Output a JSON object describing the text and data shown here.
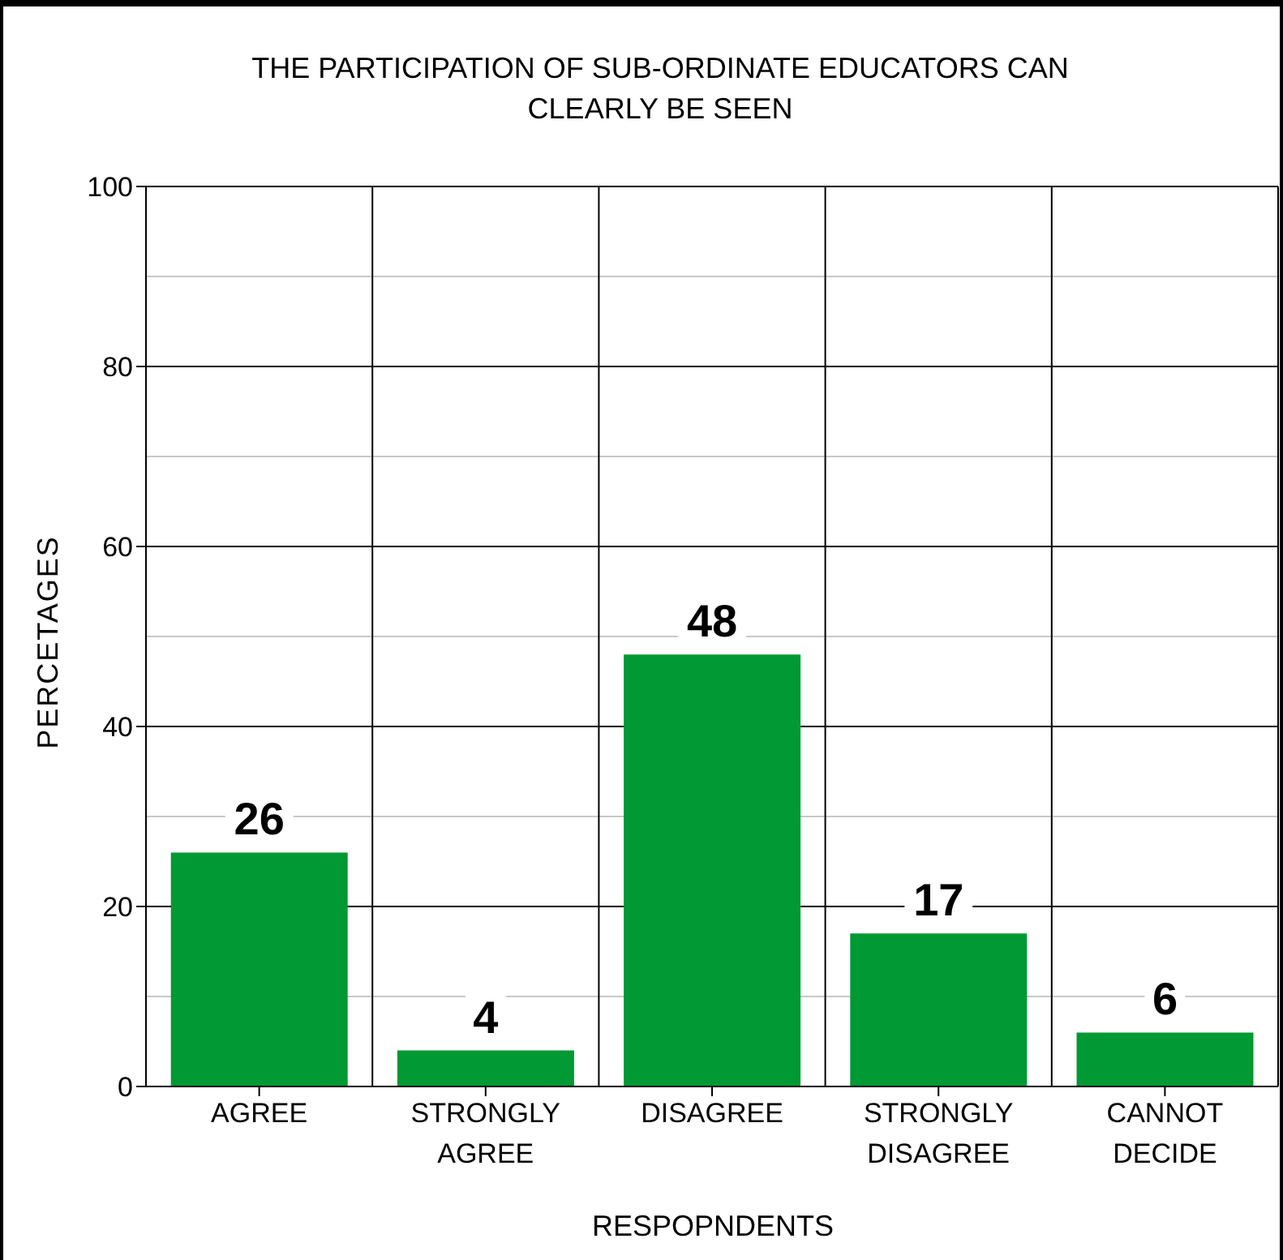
{
  "chart_data": {
    "type": "bar",
    "title": "THE PARTICIPATION OF SUB-ORDINATE EDUCATORS CAN CLEARLY BE SEEN",
    "xlabel": "RESPOPNDENTS",
    "ylabel": "PERCETAGES",
    "categories": [
      "AGREE",
      "STRONGLY AGREE",
      "DISAGREE",
      "STRONGLY DISAGREE",
      "CANNOT DECIDE"
    ],
    "values": [
      26,
      4,
      48,
      17,
      6
    ],
    "color": "#009933",
    "ylim": [
      0,
      100
    ],
    "yticks": [
      0,
      20,
      40,
      60,
      80,
      100
    ],
    "grid": true,
    "data_labels": true
  }
}
